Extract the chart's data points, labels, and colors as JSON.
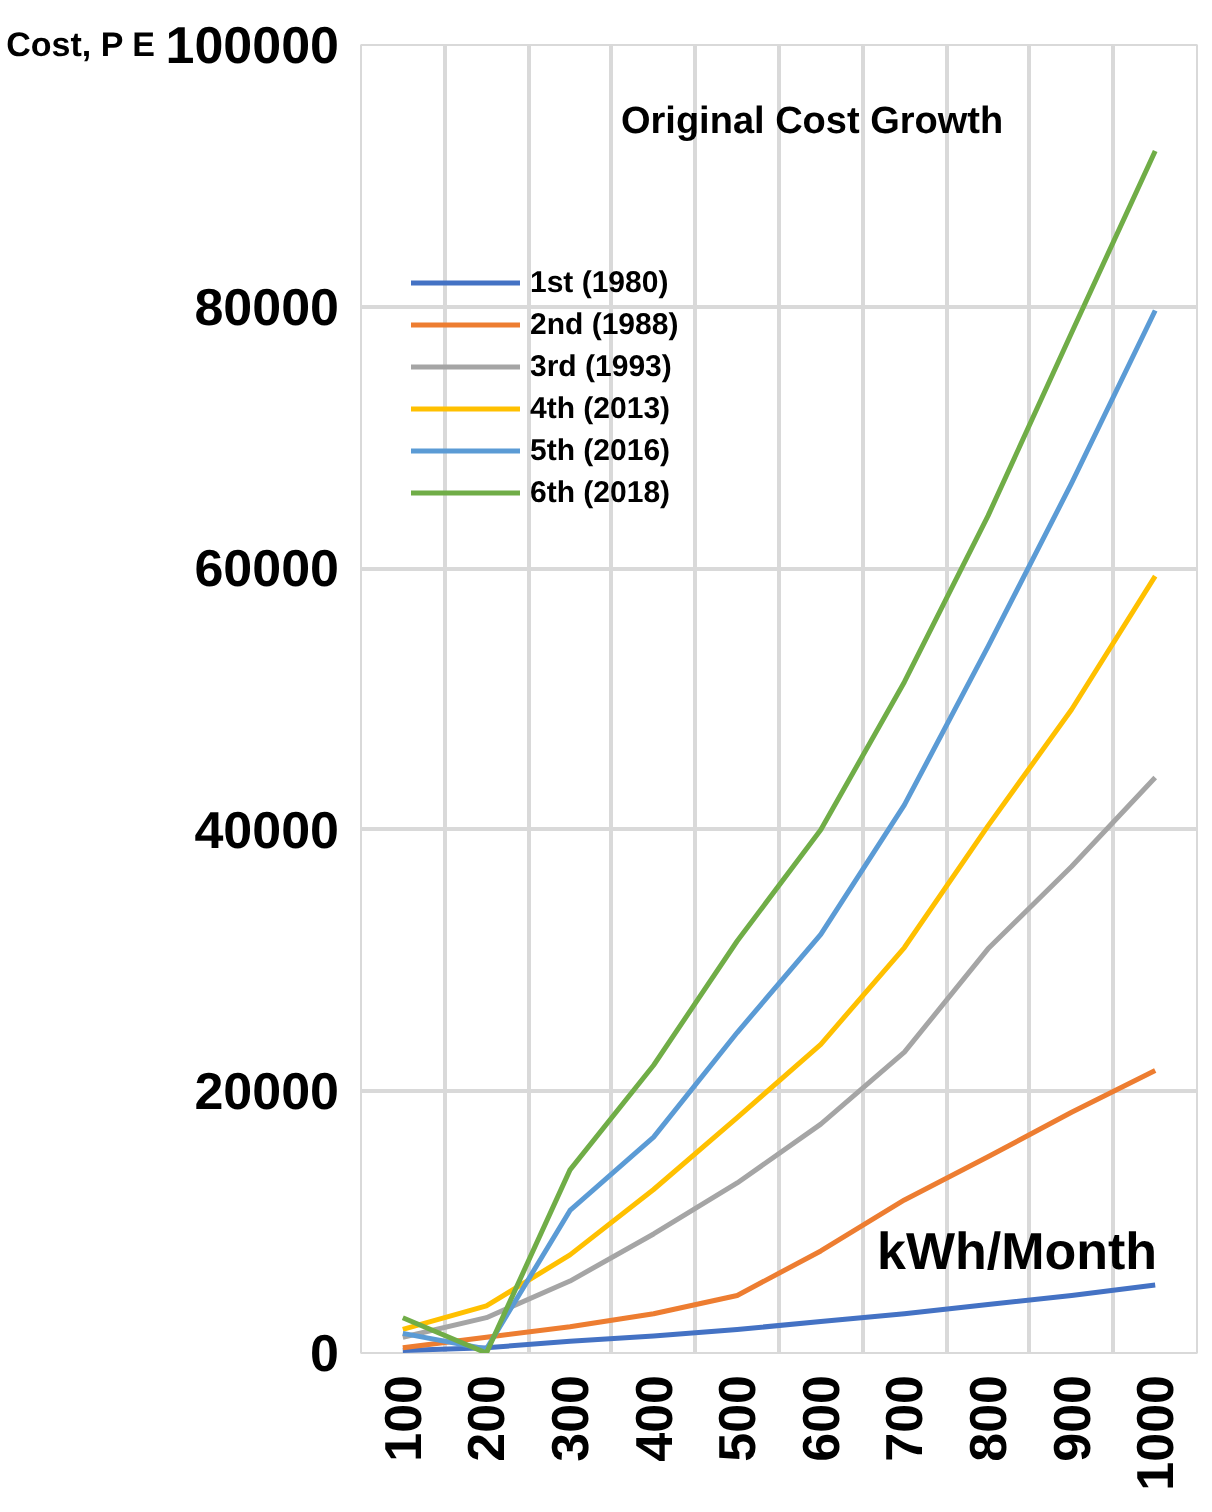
{
  "chart_data": {
    "type": "line",
    "title": "Original Cost Growth",
    "xlabel": "kWh/Month",
    "ylabel": "Cost, P E",
    "categories": [
      "100",
      "200",
      "300",
      "400",
      "500",
      "600",
      "700",
      "800",
      "900",
      "1000"
    ],
    "series": [
      {
        "name": "1st (1980)",
        "color": "#4472c4",
        "values": [
          200,
          400,
          900,
          1300,
          1800,
          2400,
          3000,
          3700,
          4400,
          5200
        ]
      },
      {
        "name": "2nd (1988)",
        "color": "#ed7d31",
        "values": [
          400,
          1200,
          2000,
          3000,
          4400,
          7800,
          11700,
          15000,
          18400,
          21600
        ]
      },
      {
        "name": "3rd (1993)",
        "color": "#a5a5a5",
        "values": [
          1200,
          2700,
          5500,
          9100,
          13000,
          17500,
          23000,
          30900,
          37200,
          44000
        ]
      },
      {
        "name": "4th (2013)",
        "color": "#ffc000",
        "values": [
          1800,
          3600,
          7500,
          12500,
          18000,
          23600,
          31000,
          40300,
          49200,
          59400
        ]
      },
      {
        "name": "5th (2016)",
        "color": "#5b9bd5",
        "values": [
          1500,
          300,
          10900,
          16500,
          24500,
          32000,
          41900,
          54000,
          66500,
          79700
        ]
      },
      {
        "name": "6th (2018)",
        "color": "#70ad47",
        "values": [
          2700,
          0,
          14000,
          22000,
          31500,
          40000,
          51300,
          64000,
          78000,
          91900
        ]
      }
    ],
    "ylim": [
      0,
      100000
    ],
    "yticks": [
      0,
      20000,
      40000,
      60000,
      80000,
      100000
    ],
    "grid": true,
    "legend": "top left",
    "marker": "none",
    "line_style": "solid"
  }
}
